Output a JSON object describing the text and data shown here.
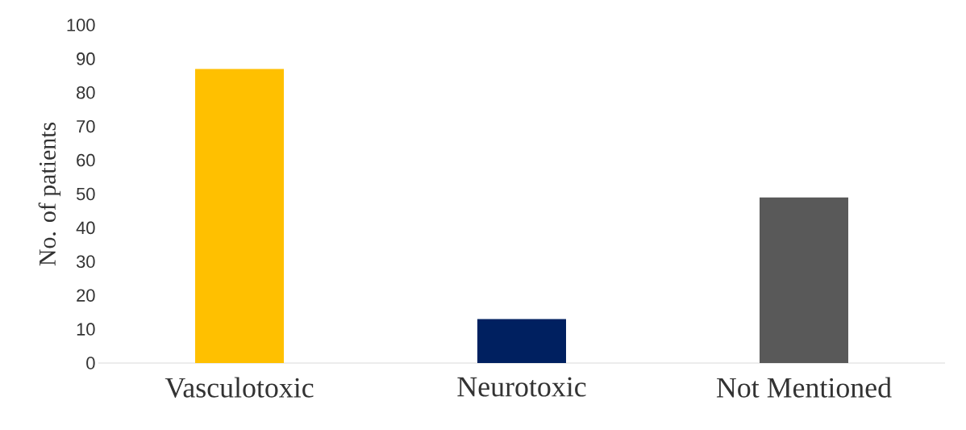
{
  "chart_data": {
    "type": "bar",
    "ylabel": "No. of patients",
    "categories": [
      "Vasculotoxic",
      "Neurotoxic",
      "Not Mentioned"
    ],
    "values": [
      87,
      13,
      49
    ],
    "colors": [
      "#ffc000",
      "#002060",
      "#595959"
    ],
    "ylim": [
      0,
      100
    ],
    "yticks": [
      0,
      10,
      20,
      30,
      40,
      50,
      60,
      70,
      80,
      90,
      100
    ],
    "grid": false
  }
}
